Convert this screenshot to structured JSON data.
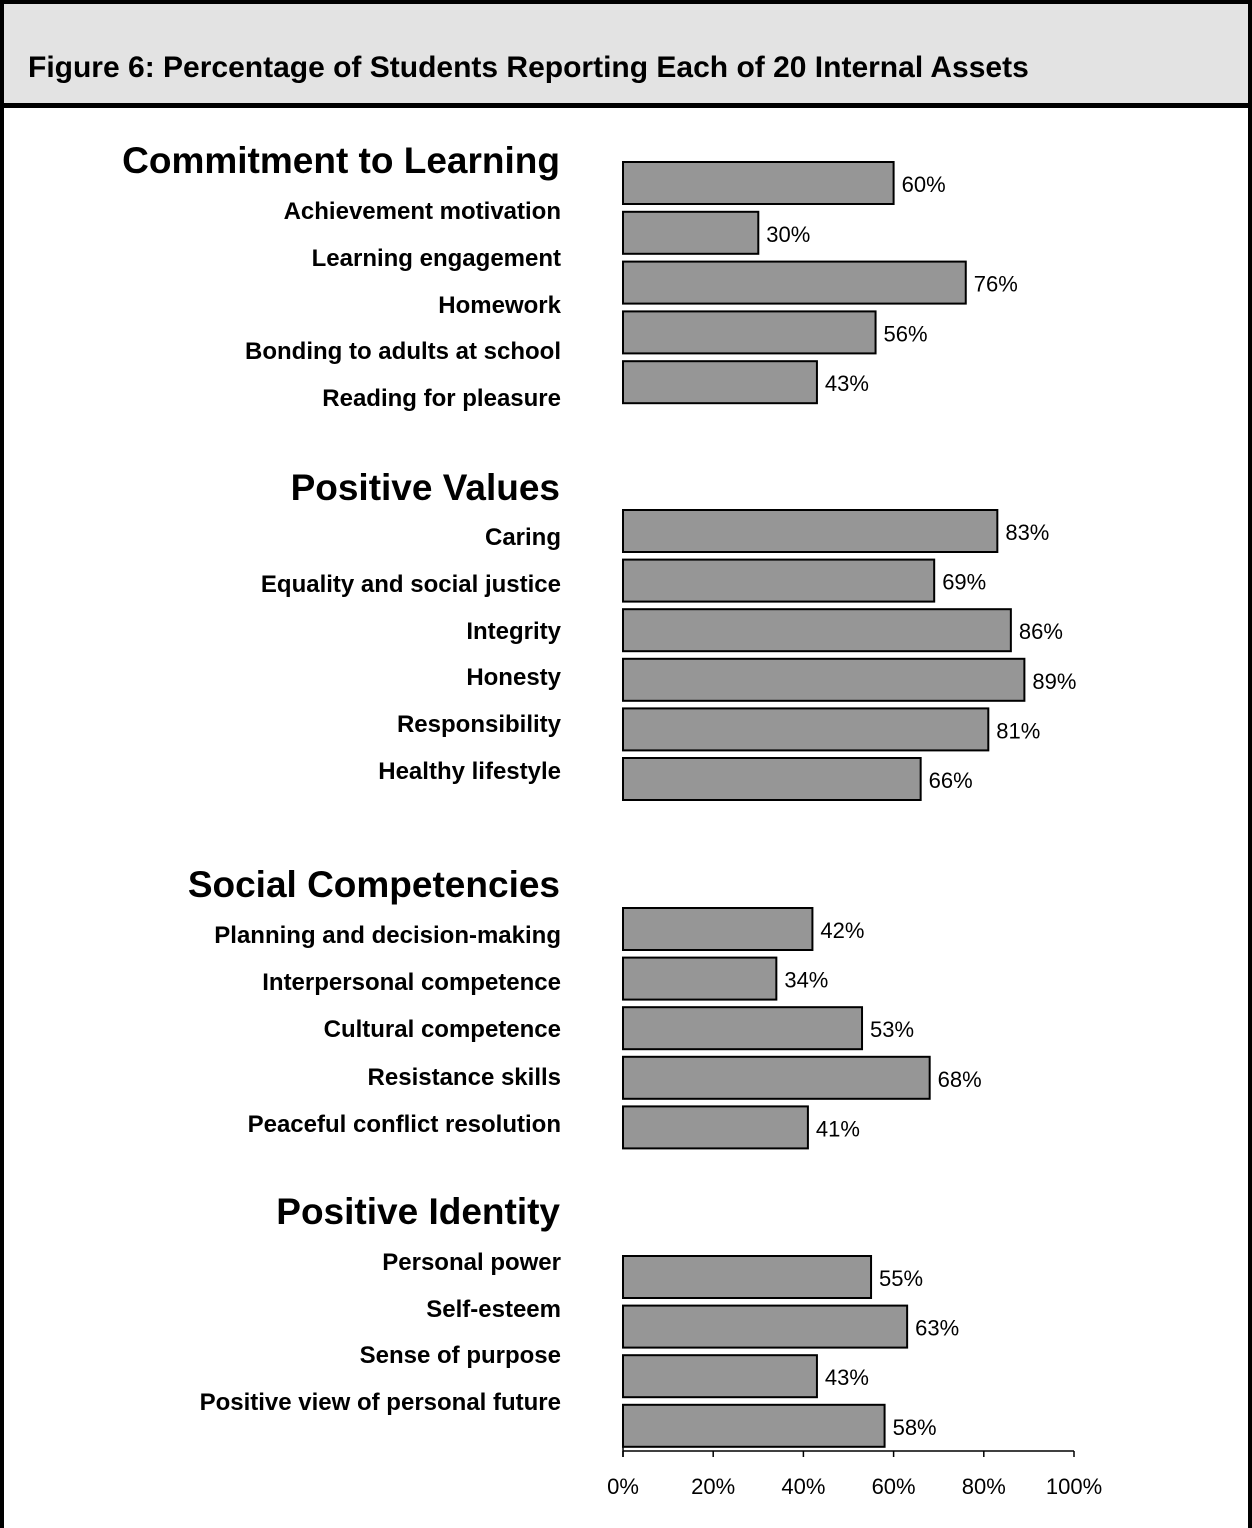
{
  "figure": {
    "title": "Figure 6: Percentage of Students Reporting Each of 20 Internal Assets"
  },
  "chart_data": {
    "type": "bar",
    "orientation": "horizontal",
    "value_unit": "%",
    "xlim": [
      0,
      100
    ],
    "x_ticks": [
      "0%",
      "20%",
      "40%",
      "60%",
      "80%",
      "100%"
    ],
    "bar_color": "#969696",
    "groups": [
      {
        "name": "Commitment to Learning",
        "categories": [
          "Achievement motivation",
          "Learning engagement",
          "Homework",
          "Bonding to adults at school",
          "Reading for pleasure"
        ],
        "values": [
          60,
          30,
          76,
          56,
          43
        ],
        "labels": [
          "60%",
          "30%",
          "76%",
          "56%",
          "43%"
        ]
      },
      {
        "name": "Positive Values",
        "categories": [
          "Caring",
          "Equality and social justice",
          "Integrity",
          "Honesty",
          "Responsibility",
          "Healthy lifestyle"
        ],
        "values": [
          83,
          69,
          86,
          89,
          81,
          66
        ],
        "labels": [
          "83%",
          "69%",
          "86%",
          "89%",
          "81%",
          "66%"
        ]
      },
      {
        "name": "Social Competencies",
        "categories": [
          "Planning and decision-making",
          "Interpersonal competence",
          "Cultural competence",
          "Resistance skills",
          "Peaceful conflict resolution"
        ],
        "values": [
          42,
          34,
          53,
          68,
          41
        ],
        "labels": [
          "42%",
          "34%",
          "53%",
          "68%",
          "41%"
        ]
      },
      {
        "name": "Positive Identity",
        "categories": [
          "Personal power",
          "Self-esteem",
          "Sense of purpose",
          "Positive view of personal future"
        ],
        "values": [
          55,
          63,
          43,
          58
        ],
        "labels": [
          "55%",
          "63%",
          "43%",
          "58%"
        ]
      }
    ]
  }
}
